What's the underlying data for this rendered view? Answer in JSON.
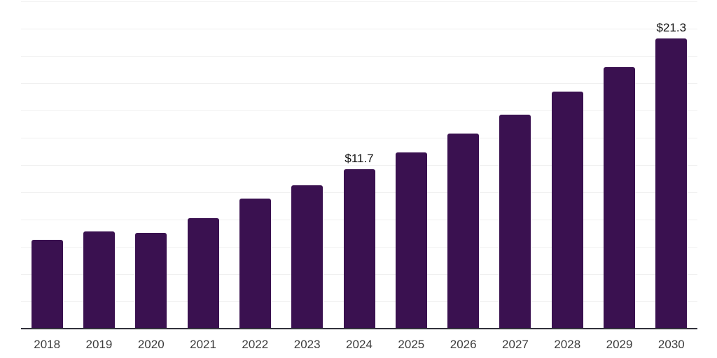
{
  "chart": {
    "colors": {
      "bar": "#3a1150",
      "grid": "#f0f0f0",
      "axis": "#32323c",
      "tick_label": "#3c3c3c",
      "data_label": "#121212"
    }
  },
  "chart_data": {
    "type": "bar",
    "title": "",
    "xlabel": "",
    "ylabel": "",
    "legend": "none",
    "grid": "horizontal",
    "categories": [
      "2018",
      "2019",
      "2020",
      "2021",
      "2022",
      "2023",
      "2024",
      "2025",
      "2026",
      "2027",
      "2028",
      "2029",
      "2030"
    ],
    "values": [
      6.5,
      7.1,
      7.0,
      8.1,
      9.5,
      10.5,
      11.7,
      12.9,
      14.3,
      15.7,
      17.4,
      19.2,
      21.3
    ],
    "data_labels": [
      "",
      "",
      "",
      "",
      "",
      "",
      "$11.7",
      "",
      "",
      "",
      "",
      "",
      "$21.3"
    ],
    "ylim": [
      0,
      24
    ],
    "grid_step": 2,
    "y_ticks_shown": false
  }
}
